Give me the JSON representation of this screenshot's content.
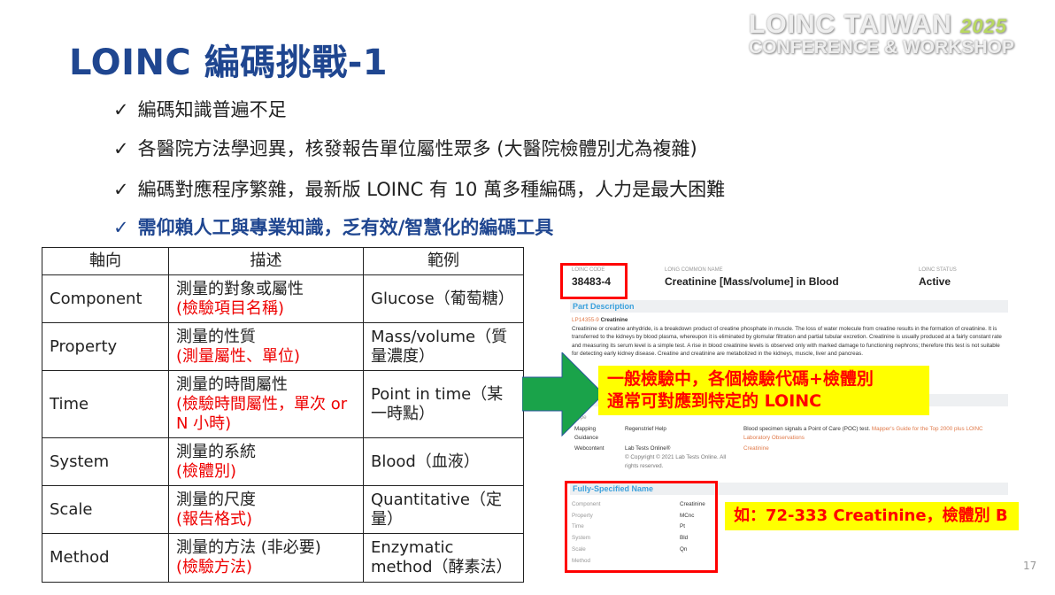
{
  "title": "LOINC 編碼挑戰-1",
  "logo": {
    "line1": "LOINC TAIWAN",
    "year": "2025",
    "line2": "CONFERENCE & WORKSHOP"
  },
  "bullets": [
    {
      "check": "✓",
      "text": "編碼知識普遍不足"
    },
    {
      "check": "✓",
      "text": "各醫院方法學迥異，核發報告單位屬性眾多 (大醫院檢體別尤為複雜)"
    },
    {
      "check": "✓",
      "text": "編碼對應程序繁雜，最新版 LOINC 有 10 萬多種編碼，人力是最大困難"
    },
    {
      "check": "✓",
      "text": "需仰賴人工與專業知識，乏有效/智慧化的編碼工具"
    }
  ],
  "table": {
    "headers": [
      "軸向",
      "描述",
      "範例"
    ],
    "rows": [
      {
        "axis": "Component",
        "desc": "測量的對象或屬性",
        "note": "(檢驗項目名稱)",
        "example": "Glucose（葡萄糖）"
      },
      {
        "axis": "Property",
        "desc": "測量的性質",
        "note": "(測量屬性、單位)",
        "example": "Mass/volume（質量濃度）"
      },
      {
        "axis": "Time",
        "desc": "測量的時間屬性",
        "note": "(檢驗時間屬性，單次 or N 小時)",
        "example": "Point in time（某一時點）"
      },
      {
        "axis": "System",
        "desc": "測量的系統",
        "note": "(檢體別)",
        "example": "Blood（血液）"
      },
      {
        "axis": "Scale",
        "desc": "測量的尺度",
        "note": "(報告格式)",
        "example": "Quantitative（定量）"
      },
      {
        "axis": "Method",
        "desc": "測量的方法 (非必要)",
        "note": "(檢驗方法)",
        "example": "Enzymatic method（酵素法）"
      }
    ]
  },
  "shot": {
    "code_label": "LOINC CODE",
    "code": "38483-4",
    "name_label": "LONG COMMON NAME",
    "name": "Creatinine [Mass/volume] in Blood",
    "status_label": "LOINC STATUS",
    "status": "Active",
    "part_desc": "Part Description",
    "part_code": "LP14355-9",
    "part_name": "Creatinine",
    "part_text": "Creatinine or creatine anhydride, is a breakdown product of creatine phosphate in muscle. The loss of water molecule from creatine results in the formation of creatinine. It is transferred to the kidneys by blood plasma, whereupon it is eliminated by glomular filtration and partial tubular excretion. Creatinine is usually produced at a fairly constant rate and measuring its serum level is a simple test. A rise in blood creatinine levels is observed only with marked damage to functioning nephrons; therefore this test is not suitable for detecting early kidney disease. Creatine and creatinine are metabolized in the kidneys, muscle, liver and pancreas.",
    "type_label": "Type",
    "ref_rows": [
      {
        "type": "Mapping Guidance",
        "source": "Regenstrief Help",
        "text": "Blood specimen signals a Point of Care (POC) test.",
        "link": "Mapper's Guide for the Top 2000 plus LOINC Laboratory Observations"
      },
      {
        "type": "Webcontent",
        "source": "Lab Tests Online®",
        "text": "© Copyright © 2021 Lab Tests Online. All rights reserved.",
        "link": "Creatinine"
      }
    ],
    "fsn_title": "Fully-Specified Name",
    "fsn": [
      [
        "Component",
        "Creatinine"
      ],
      [
        "Property",
        "MCnc"
      ],
      [
        "Time",
        "Pt"
      ],
      [
        "System",
        "Bld"
      ],
      [
        "Scale",
        "Qn"
      ],
      [
        "Method",
        ""
      ]
    ]
  },
  "callout1": {
    "line1": "一般檢驗中，各個檢驗代碼+檢體別",
    "line2": "通常可對應到特定的 LOINC"
  },
  "callout2": "如：72-333 Creatinine，檢體別 B",
  "page_number": "17",
  "colors": {
    "title": "#1f4690",
    "callout_bg": "#ffff00",
    "callout_text": "#ff0000",
    "arrow": "#1aa34a"
  }
}
